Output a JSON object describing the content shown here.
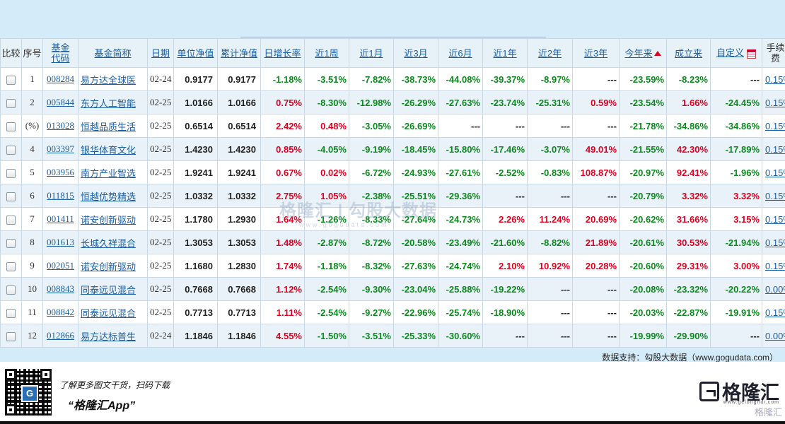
{
  "headers": [
    {
      "label": "比较",
      "link": false
    },
    {
      "label": "序号",
      "link": false
    },
    {
      "label": "基金代码",
      "link": true
    },
    {
      "label": "基金简称",
      "link": true
    },
    {
      "label": "日期",
      "link": true
    },
    {
      "label": "单位净值",
      "link": true
    },
    {
      "label": "累计净值",
      "link": true
    },
    {
      "label": "日增长率",
      "link": true
    },
    {
      "label": "近1周",
      "link": true
    },
    {
      "label": "近1月",
      "link": true
    },
    {
      "label": "近3月",
      "link": true
    },
    {
      "label": "近6月",
      "link": true
    },
    {
      "label": "近1年",
      "link": true
    },
    {
      "label": "近2年",
      "link": true
    },
    {
      "label": "近3年",
      "link": true
    },
    {
      "label": "今年来",
      "link": true,
      "sort": true
    },
    {
      "label": "成立来",
      "link": true
    },
    {
      "label": "自定义",
      "link": true,
      "calendar": true
    },
    {
      "label": "手续费",
      "link": false
    }
  ],
  "rows": [
    {
      "idx": "1",
      "code": "008284",
      "name": "易方达全球医",
      "date": "02-24",
      "nav": "0.9177",
      "acc": "0.9177",
      "r": [
        "-1.18%",
        "-3.51%",
        "-7.82%",
        "-38.73%",
        "-44.08%",
        "-39.37%",
        "-8.97%",
        "---",
        "-23.59%",
        "-8.23%",
        "---"
      ],
      "fee": "0.15%"
    },
    {
      "idx": "2",
      "code": "005844",
      "name": "东方人工智能",
      "date": "02-25",
      "nav": "1.0166",
      "acc": "1.0166",
      "r": [
        "0.75%",
        "-8.30%",
        "-12.98%",
        "-26.29%",
        "-27.63%",
        "-23.74%",
        "-25.31%",
        "0.59%",
        "-23.54%",
        "1.66%",
        "-24.45%"
      ],
      "fee": "0.15%"
    },
    {
      "idx": "(%)",
      "code": "013028",
      "name": "恒越品质生活",
      "date": "02-25",
      "nav": "0.6514",
      "acc": "0.6514",
      "r": [
        "2.42%",
        "0.48%",
        "-3.05%",
        "-26.69%",
        "---",
        "---",
        "---",
        "---",
        "-21.78%",
        "-34.86%",
        "-34.86%"
      ],
      "fee": "0.15%"
    },
    {
      "idx": "4",
      "code": "003397",
      "name": "银华体育文化",
      "date": "02-25",
      "nav": "1.4230",
      "acc": "1.4230",
      "r": [
        "0.85%",
        "-4.05%",
        "-9.19%",
        "-18.45%",
        "-15.80%",
        "-17.46%",
        "-3.07%",
        "49.01%",
        "-21.55%",
        "42.30%",
        "-17.89%"
      ],
      "fee": "0.15%"
    },
    {
      "idx": "5",
      "code": "003956",
      "name": "南方产业智选",
      "date": "02-25",
      "nav": "1.9241",
      "acc": "1.9241",
      "r": [
        "0.67%",
        "0.02%",
        "-6.72%",
        "-24.93%",
        "-27.61%",
        "-2.52%",
        "-0.83%",
        "108.87%",
        "-20.97%",
        "92.41%",
        "-1.96%"
      ],
      "fee": "0.15%"
    },
    {
      "idx": "6",
      "code": "011815",
      "name": "恒越优势精选",
      "date": "02-25",
      "nav": "1.0332",
      "acc": "1.0332",
      "r": [
        "2.75%",
        "1.05%",
        "-2.38%",
        "-25.51%",
        "-29.36%",
        "---",
        "---",
        "---",
        "-20.79%",
        "3.32%",
        "3.32%"
      ],
      "fee": "0.15%"
    },
    {
      "idx": "7",
      "code": "001411",
      "name": "诺安创新驱动",
      "date": "02-25",
      "nav": "1.1780",
      "acc": "1.2930",
      "r": [
        "1.64%",
        "-1.26%",
        "-8.33%",
        "-27.64%",
        "-24.73%",
        "2.26%",
        "11.24%",
        "20.69%",
        "-20.62%",
        "31.66%",
        "3.15%"
      ],
      "fee": "0.15%"
    },
    {
      "idx": "8",
      "code": "001613",
      "name": "长城久祥混合",
      "date": "02-25",
      "nav": "1.3053",
      "acc": "1.3053",
      "r": [
        "1.48%",
        "-2.87%",
        "-8.72%",
        "-20.58%",
        "-23.49%",
        "-21.60%",
        "-8.82%",
        "21.89%",
        "-20.61%",
        "30.53%",
        "-21.94%"
      ],
      "fee": "0.15%"
    },
    {
      "idx": "9",
      "code": "002051",
      "name": "诺安创新驱动",
      "date": "02-25",
      "nav": "1.1680",
      "acc": "1.2830",
      "r": [
        "1.74%",
        "-1.18%",
        "-8.32%",
        "-27.63%",
        "-24.74%",
        "2.10%",
        "10.92%",
        "20.28%",
        "-20.60%",
        "29.31%",
        "3.00%"
      ],
      "fee": "0.15%"
    },
    {
      "idx": "10",
      "code": "008843",
      "name": "同泰远见混合",
      "date": "02-25",
      "nav": "0.7668",
      "acc": "0.7668",
      "r": [
        "1.12%",
        "-2.54%",
        "-9.30%",
        "-23.04%",
        "-25.88%",
        "-19.22%",
        "---",
        "---",
        "-20.08%",
        "-23.32%",
        "-20.22%"
      ],
      "fee": "0.00%"
    },
    {
      "idx": "11",
      "code": "008842",
      "name": "同泰远见混合",
      "date": "02-25",
      "nav": "0.7713",
      "acc": "0.7713",
      "r": [
        "1.11%",
        "-2.54%",
        "-9.27%",
        "-22.96%",
        "-25.74%",
        "-18.90%",
        "---",
        "---",
        "-20.03%",
        "-22.87%",
        "-19.91%"
      ],
      "fee": "0.15%"
    },
    {
      "idx": "12",
      "code": "012866",
      "name": "易方达标普生",
      "date": "02-24",
      "nav": "1.1846",
      "acc": "1.1846",
      "r": [
        "4.55%",
        "-1.50%",
        "-3.51%",
        "-25.33%",
        "-30.60%",
        "---",
        "---",
        "---",
        "-19.99%",
        "-29.90%",
        "---"
      ],
      "fee": "0.00%"
    }
  ],
  "watermark": {
    "brand": "格隆汇 | 勾股大数据",
    "url": "www.gogudata.com"
  },
  "source": "数据支持：勾股大数据（www.gogudata.com）",
  "footer": {
    "promo_line1": "了解更多图文干货，扫码下载",
    "promo_line2": "“格隆汇App”",
    "brand_name": "格隆汇",
    "brand_url": "www.gelonghui.com",
    "brand_watermark": "格隆汇"
  },
  "colors": {
    "up": "#e1001e",
    "down": "#0b8a1e",
    "link": "#1c5fa3",
    "header_bg": "#e7f2f8",
    "page_bg": "#d4ecf9"
  },
  "icons": {
    "sort": "sort-up-icon",
    "calendar": "calendar-icon",
    "qr": "qr-code-icon",
    "logo": "gelonghui-logo-icon"
  }
}
